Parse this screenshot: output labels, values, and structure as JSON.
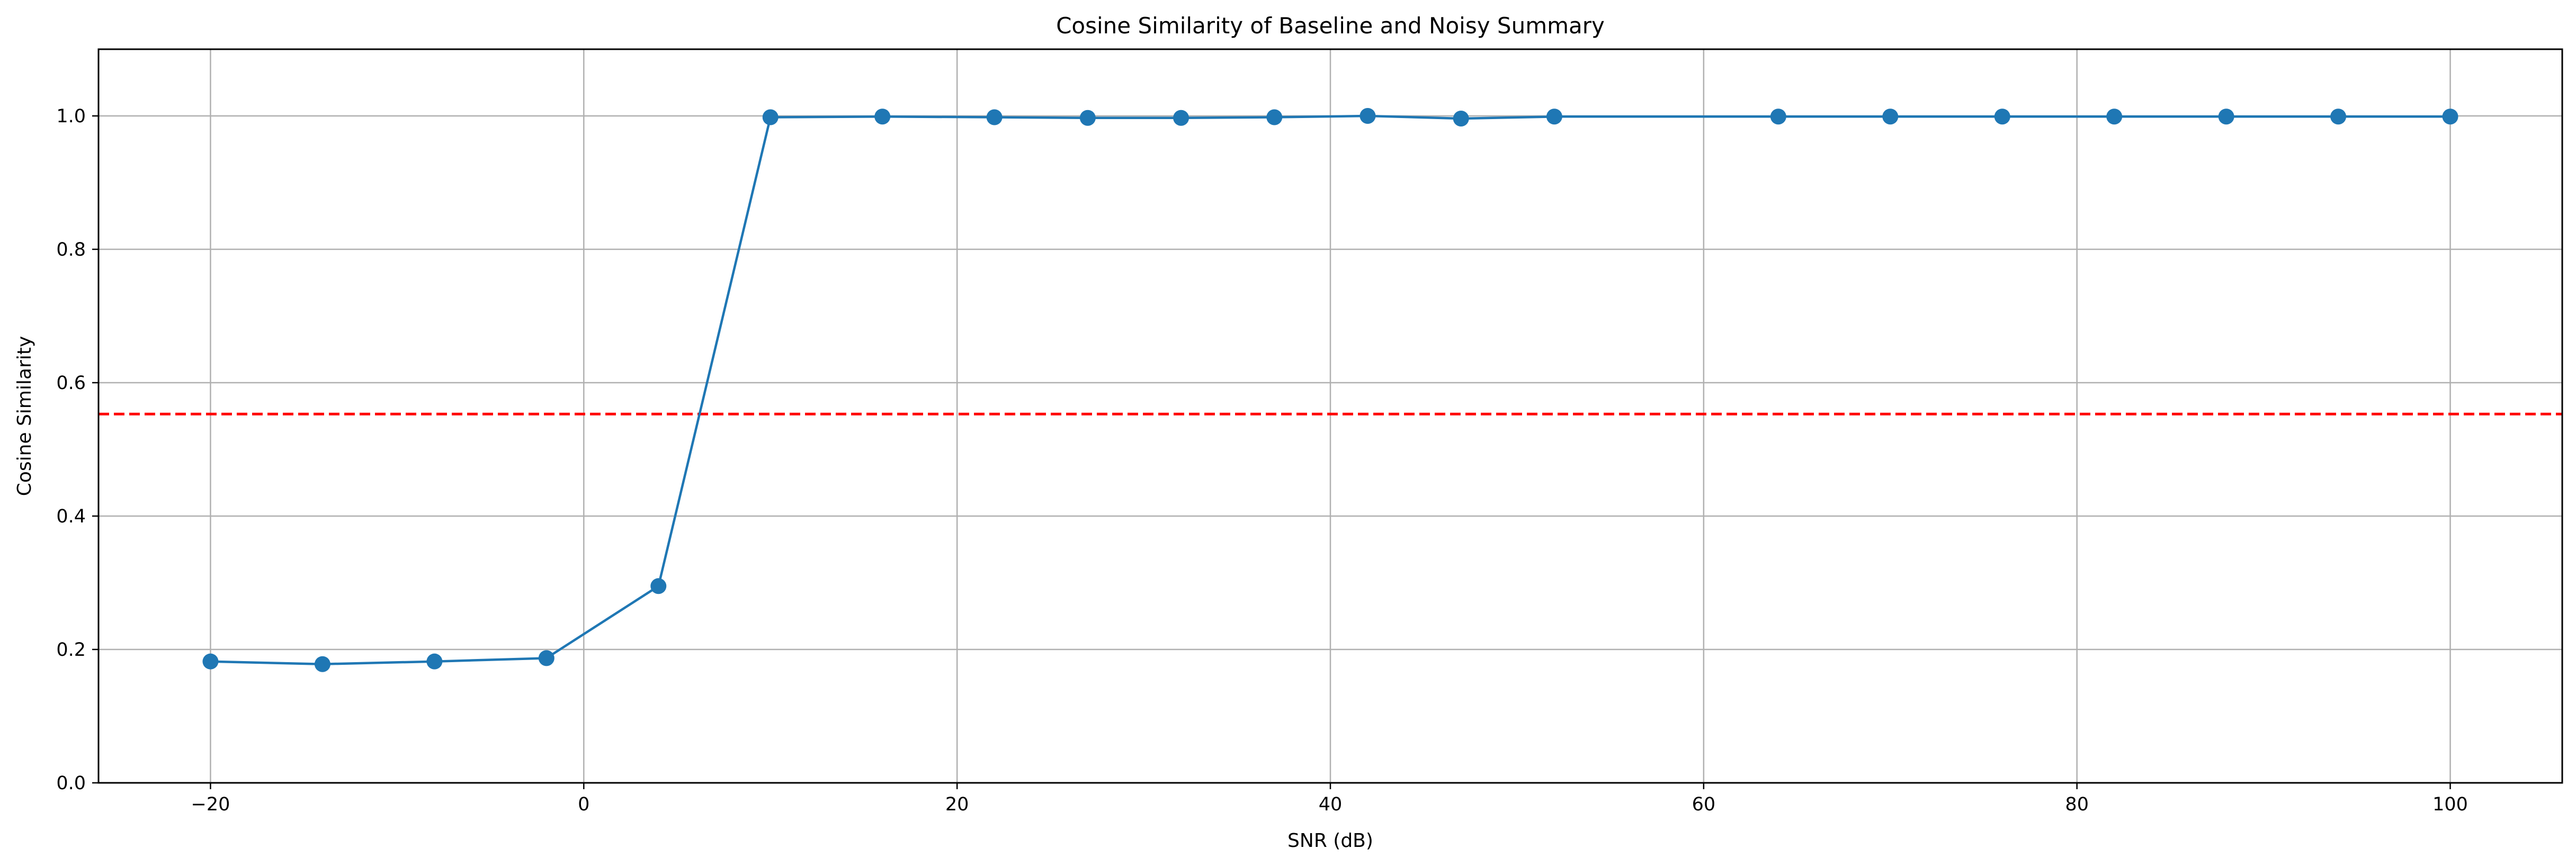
{
  "chart_data": {
    "type": "line",
    "title": "Cosine Similarity of Baseline and Noisy Summary",
    "xlabel": "SNR (dB)",
    "ylabel": "Cosine Similarity",
    "xlim": [
      -26,
      106
    ],
    "ylim": [
      0,
      1.1
    ],
    "x_ticks": [
      -20,
      0,
      20,
      40,
      60,
      80,
      100
    ],
    "x_tick_labels": [
      "−20",
      "0",
      "20",
      "40",
      "60",
      "80",
      "100"
    ],
    "y_ticks": [
      0,
      0.2,
      0.4,
      0.6,
      0.8,
      1.0
    ],
    "y_tick_labels": [
      "0.0",
      "0.2",
      "0.4",
      "0.6",
      "0.8",
      "1.0"
    ],
    "grid": true,
    "series": [
      {
        "color": "#1f77b4",
        "marker": "circle",
        "x": [
          -20,
          -14,
          -8,
          -2,
          4,
          10,
          16,
          22,
          27,
          32,
          37,
          42,
          47,
          52,
          64,
          70,
          76,
          82,
          88,
          94,
          100
        ],
        "y": [
          0.182,
          0.178,
          0.182,
          0.187,
          0.295,
          0.998,
          0.999,
          0.998,
          0.997,
          0.997,
          0.998,
          1.0,
          0.996,
          0.999,
          0.999,
          0.999,
          0.999,
          0.999,
          0.999,
          0.999,
          0.999
        ]
      }
    ],
    "reference_lines": [
      {
        "orientation": "horizontal",
        "y": 0.553,
        "color": "#ff0000",
        "style": "dashed"
      }
    ]
  }
}
